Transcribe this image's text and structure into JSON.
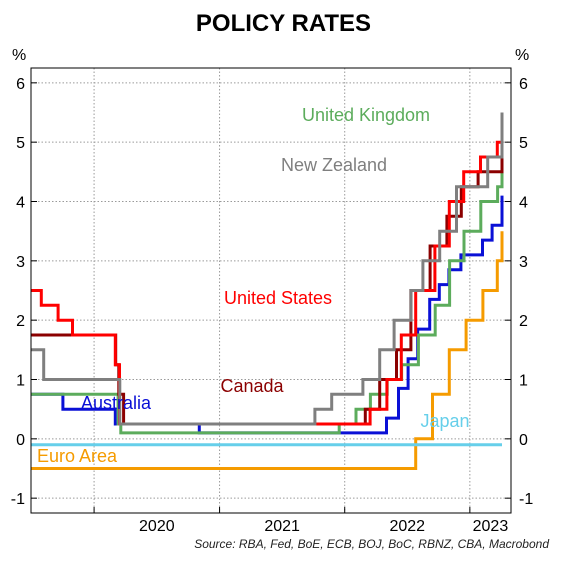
{
  "chart_data": {
    "type": "line",
    "title": "POLICY RATES",
    "source": "Source: RBA, Fed, BoE, ECB, BOJ, BoC, RBNZ, CBA, Macrobond",
    "unit_left": "%",
    "unit_right": "%",
    "ylim": [
      -1.25,
      6.25
    ],
    "yticks": [
      -1,
      0,
      1,
      2,
      3,
      4,
      5,
      6
    ],
    "xlim": [
      "2019-07-01",
      "2023-05-01"
    ],
    "xticks": [
      "2020",
      "2021",
      "2022",
      "2023"
    ],
    "grid": true,
    "colors": {
      "Australia": "#0a10d6",
      "United States": "#ff0000",
      "United Kingdom": "#5cac5c",
      "New Zealand": "#7f7f7f",
      "Canada": "#8b0000",
      "Japan": "#66cfea",
      "Euro Area": "#f59b00"
    },
    "series": [
      {
        "name": "Australia",
        "label": "Australia",
        "points": [
          [
            "2019-07-01",
            0.75
          ],
          [
            "2019-10-01",
            0.75
          ],
          [
            "2019-10-02",
            0.5
          ],
          [
            "2020-03-01",
            0.5
          ],
          [
            "2020-03-03",
            0.25
          ],
          [
            "2020-11-01",
            0.25
          ],
          [
            "2020-11-03",
            0.1
          ],
          [
            "2022-05-01",
            0.1
          ],
          [
            "2022-05-03",
            0.35
          ],
          [
            "2022-06-01",
            0.35
          ],
          [
            "2022-06-07",
            0.85
          ],
          [
            "2022-07-01",
            0.85
          ],
          [
            "2022-07-05",
            1.35
          ],
          [
            "2022-08-01",
            1.35
          ],
          [
            "2022-08-02",
            1.85
          ],
          [
            "2022-09-01",
            1.85
          ],
          [
            "2022-09-06",
            2.35
          ],
          [
            "2022-10-01",
            2.35
          ],
          [
            "2022-10-04",
            2.6
          ],
          [
            "2022-11-01",
            2.6
          ],
          [
            "2022-11-01",
            2.85
          ],
          [
            "2022-12-01",
            2.85
          ],
          [
            "2022-12-06",
            3.1
          ],
          [
            "2023-02-01",
            3.1
          ],
          [
            "2023-02-07",
            3.35
          ],
          [
            "2023-03-01",
            3.35
          ],
          [
            "2023-03-07",
            3.6
          ],
          [
            "2023-04-01",
            3.6
          ],
          [
            "2023-05-02",
            3.85
          ],
          [
            "2023-06-01",
            3.85
          ],
          [
            "2023-06-06",
            4.1
          ],
          [
            "2023-07-01",
            4.1
          ]
        ]
      },
      {
        "name": "United States",
        "label": "United States",
        "points": [
          [
            "2019-07-01",
            2.5
          ],
          [
            "2019-07-31",
            2.25
          ],
          [
            "2019-09-18",
            2.0
          ],
          [
            "2019-10-30",
            1.75
          ],
          [
            "2020-03-03",
            1.25
          ],
          [
            "2020-03-15",
            0.25
          ],
          [
            "2022-03-16",
            0.5
          ],
          [
            "2022-05-04",
            1.0
          ],
          [
            "2022-06-15",
            1.75
          ],
          [
            "2022-07-27",
            2.5
          ],
          [
            "2022-09-21",
            3.25
          ],
          [
            "2022-11-02",
            4.0
          ],
          [
            "2022-12-14",
            4.5
          ],
          [
            "2023-02-01",
            4.75
          ],
          [
            "2023-03-22",
            5.0
          ],
          [
            "2023-05-03",
            5.25
          ],
          [
            "2023-07-01",
            5.25
          ]
        ]
      },
      {
        "name": "United Kingdom",
        "label": "United Kingdom",
        "points": [
          [
            "2019-07-01",
            0.75
          ],
          [
            "2020-03-11",
            0.25
          ],
          [
            "2020-03-19",
            0.1
          ],
          [
            "2021-12-16",
            0.25
          ],
          [
            "2022-02-03",
            0.5
          ],
          [
            "2022-03-17",
            0.75
          ],
          [
            "2022-05-05",
            1.0
          ],
          [
            "2022-06-16",
            1.25
          ],
          [
            "2022-08-04",
            1.75
          ],
          [
            "2022-09-22",
            2.25
          ],
          [
            "2022-11-03",
            3.0
          ],
          [
            "2022-12-15",
            3.5
          ],
          [
            "2023-02-02",
            4.0
          ],
          [
            "2023-03-23",
            4.25
          ],
          [
            "2023-05-11",
            4.5
          ],
          [
            "2023-06-22",
            5.0
          ],
          [
            "2023-07-01",
            5.0
          ]
        ]
      },
      {
        "name": "New Zealand",
        "label": "New Zealand",
        "points": [
          [
            "2019-07-01",
            1.5
          ],
          [
            "2019-08-07",
            1.0
          ],
          [
            "2020-03-16",
            0.25
          ],
          [
            "2021-10-06",
            0.5
          ],
          [
            "2021-11-24",
            0.75
          ],
          [
            "2022-02-23",
            1.0
          ],
          [
            "2022-04-13",
            1.5
          ],
          [
            "2022-05-25",
            2.0
          ],
          [
            "2022-07-13",
            2.5
          ],
          [
            "2022-08-17",
            3.0
          ],
          [
            "2022-10-05",
            3.5
          ],
          [
            "2022-11-23",
            4.25
          ],
          [
            "2023-02-22",
            4.75
          ],
          [
            "2023-04-05",
            5.25
          ],
          [
            "2023-05-24",
            5.5
          ],
          [
            "2023-07-01",
            5.5
          ]
        ]
      },
      {
        "name": "Canada",
        "label": "Canada",
        "points": [
          [
            "2019-07-01",
            1.75
          ],
          [
            "2020-03-04",
            1.25
          ],
          [
            "2020-03-13",
            0.75
          ],
          [
            "2020-03-27",
            0.25
          ],
          [
            "2022-03-02",
            0.5
          ],
          [
            "2022-04-13",
            1.0
          ],
          [
            "2022-06-01",
            1.5
          ],
          [
            "2022-07-13",
            2.5
          ],
          [
            "2022-09-07",
            3.25
          ],
          [
            "2022-10-26",
            3.75
          ],
          [
            "2022-12-07",
            4.25
          ],
          [
            "2023-01-25",
            4.5
          ],
          [
            "2023-06-07",
            4.75
          ],
          [
            "2023-07-01",
            4.75
          ]
        ]
      },
      {
        "name": "Japan",
        "label": "Japan",
        "points": [
          [
            "2019-07-01",
            -0.1
          ],
          [
            "2023-07-01",
            -0.1
          ]
        ]
      },
      {
        "name": "Euro Area",
        "label": "Euro Area",
        "points": [
          [
            "2019-07-01",
            -0.5
          ],
          [
            "2022-07-27",
            0.0
          ],
          [
            "2022-09-14",
            0.75
          ],
          [
            "2022-11-02",
            1.5
          ],
          [
            "2022-12-21",
            2.0
          ],
          [
            "2023-02-08",
            2.5
          ],
          [
            "2023-03-22",
            3.0
          ],
          [
            "2023-05-10",
            3.25
          ],
          [
            "2023-06-21",
            3.5
          ],
          [
            "2023-07-01",
            3.5
          ]
        ]
      }
    ]
  }
}
